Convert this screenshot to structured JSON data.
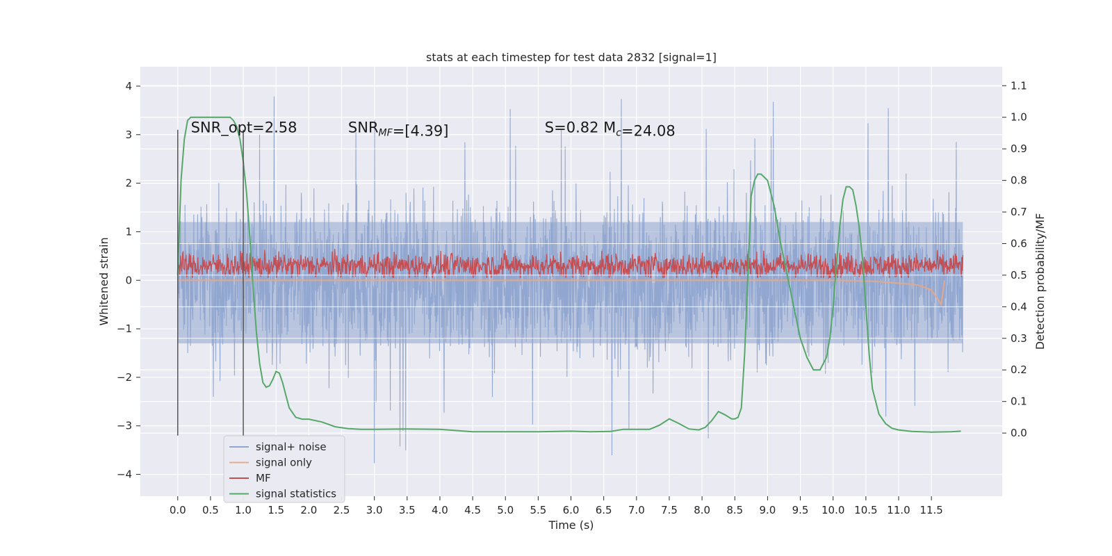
{
  "chart_data": {
    "type": "line",
    "title": "stats at each timestep for test data 2832 [signal=1]",
    "xlabel": "Time (s)",
    "ylabel": "Whitened strain",
    "y2label": "Detection probability/MF",
    "xlim": [
      -0.57,
      12.58
    ],
    "ylim": [
      -4.45,
      4.4
    ],
    "y2lim": [
      -0.2,
      1.16
    ],
    "grid": true,
    "x_ticks": [
      0.0,
      0.5,
      1.0,
      1.5,
      2.0,
      2.5,
      3.0,
      3.5,
      4.0,
      4.5,
      5.0,
      5.5,
      6.0,
      6.5,
      7.0,
      7.5,
      8.0,
      8.5,
      9.0,
      9.5,
      10.0,
      10.5,
      11.0,
      11.5
    ],
    "x_tick_labels": [
      "0.0",
      "0.5",
      "1.0",
      "1.5",
      "2.0",
      "2.5",
      "3.0",
      "3.5",
      "4.0",
      "4.5",
      "5.0",
      "5.5",
      "6.0",
      "6.5",
      "7.0",
      "7.5",
      "8.0",
      "8.5",
      "9.0",
      "9.5",
      "10.0",
      "10.5",
      "11.0",
      "11.5"
    ],
    "y_ticks": [
      -4,
      -3,
      -2,
      -1,
      0,
      1,
      2,
      3,
      4
    ],
    "y_tick_labels": [
      "−4",
      "−3",
      "−2",
      "−1",
      "0",
      "1",
      "2",
      "3",
      "4"
    ],
    "y2_ticks": [
      0.0,
      0.1,
      0.2,
      0.3,
      0.4,
      0.5,
      0.6,
      0.7,
      0.8,
      0.9,
      1.0,
      1.1
    ],
    "y2_tick_labels": [
      "0.0",
      "0.1",
      "0.2",
      "0.3",
      "0.4",
      "0.5",
      "0.6",
      "0.7",
      "0.8",
      "0.9",
      "1.0",
      "1.1"
    ],
    "annotations": [
      {
        "text": "SNR_opt=2.58",
        "x": 0.2,
        "y": 3.15
      },
      {
        "text": "SNR_MF=[4.39]",
        "x": 2.6,
        "y": 3.15
      },
      {
        "text": "S=0.82   M_c=24.08",
        "x": 5.6,
        "y": 3.15
      }
    ],
    "vlines": [
      {
        "x": 0.0,
        "ymin": -3.2,
        "ymax": 3.1
      },
      {
        "x": 1.0,
        "ymin": -3.2,
        "ymax": 3.1
      }
    ],
    "legend": {
      "position": "lower-left",
      "entries": [
        "signal+ noise",
        "signal only",
        "MF",
        "signal statistics"
      ]
    },
    "series": [
      {
        "name": "signal+ noise",
        "axis": "left",
        "color": "#8fa5cf",
        "x_range": [
          0.0,
          11.98
        ],
        "envelope_upper": 2.3,
        "envelope_lower": -2.3,
        "peak_max": 3.97,
        "peak_min": -4.1
      },
      {
        "name": "signal only",
        "axis": "left",
        "color": "#e6a98a",
        "x": [
          0.0,
          10.0,
          10.6,
          11.0,
          11.3,
          11.5,
          11.6,
          11.65,
          11.7
        ],
        "y": [
          0.0,
          0.0,
          -0.02,
          -0.06,
          -0.1,
          -0.2,
          -0.4,
          -0.5,
          0.0
        ]
      },
      {
        "name": "MF",
        "axis": "left",
        "color": "#c44e52",
        "x_range": [
          0.0,
          11.98
        ],
        "center": 0.3,
        "band": [
          0.05,
          0.85
        ]
      },
      {
        "name": "signal statistics",
        "axis": "right",
        "color": "#55a868",
        "x": [
          0.0,
          0.05,
          0.1,
          0.15,
          0.2,
          0.3,
          0.4,
          0.5,
          0.6,
          0.7,
          0.8,
          0.85,
          0.9,
          0.95,
          1.0,
          1.05,
          1.1,
          1.15,
          1.2,
          1.25,
          1.3,
          1.35,
          1.4,
          1.45,
          1.5,
          1.55,
          1.6,
          1.65,
          1.7,
          1.8,
          1.9,
          2.0,
          2.2,
          2.4,
          2.6,
          2.8,
          3.0,
          3.5,
          4.0,
          4.5,
          5.0,
          5.5,
          6.0,
          6.3,
          6.6,
          6.8,
          7.0,
          7.2,
          7.35,
          7.5,
          7.65,
          7.8,
          7.95,
          8.05,
          8.15,
          8.25,
          8.35,
          8.45,
          8.5,
          8.55,
          8.6,
          8.65,
          8.7,
          8.75,
          8.8,
          8.85,
          8.9,
          8.95,
          9.0,
          9.1,
          9.2,
          9.3,
          9.4,
          9.5,
          9.6,
          9.7,
          9.8,
          9.9,
          9.95,
          10.0,
          10.05,
          10.1,
          10.15,
          10.2,
          10.25,
          10.3,
          10.35,
          10.4,
          10.45,
          10.5,
          10.55,
          10.6,
          10.7,
          10.8,
          10.9,
          11.0,
          11.2,
          11.5,
          11.8,
          11.95
        ],
        "y": [
          0.5,
          0.8,
          0.93,
          0.99,
          1.0,
          1.0,
          1.0,
          1.0,
          1.0,
          1.0,
          1.0,
          0.99,
          0.97,
          0.93,
          0.86,
          0.76,
          0.62,
          0.46,
          0.32,
          0.22,
          0.16,
          0.145,
          0.15,
          0.17,
          0.195,
          0.19,
          0.16,
          0.12,
          0.08,
          0.05,
          0.044,
          0.044,
          0.035,
          0.02,
          0.014,
          0.012,
          0.012,
          0.013,
          0.012,
          0.004,
          0.004,
          0.004,
          0.006,
          0.004,
          0.005,
          0.012,
          0.012,
          0.012,
          0.025,
          0.045,
          0.03,
          0.013,
          0.01,
          0.018,
          0.04,
          0.068,
          0.058,
          0.045,
          0.045,
          0.05,
          0.08,
          0.25,
          0.5,
          0.75,
          0.8,
          0.82,
          0.82,
          0.81,
          0.8,
          0.72,
          0.6,
          0.5,
          0.4,
          0.3,
          0.24,
          0.2,
          0.2,
          0.24,
          0.3,
          0.4,
          0.53,
          0.65,
          0.74,
          0.78,
          0.78,
          0.77,
          0.72,
          0.65,
          0.55,
          0.4,
          0.25,
          0.14,
          0.06,
          0.03,
          0.015,
          0.01,
          0.005,
          0.003,
          0.004,
          0.006
        ]
      }
    ]
  }
}
